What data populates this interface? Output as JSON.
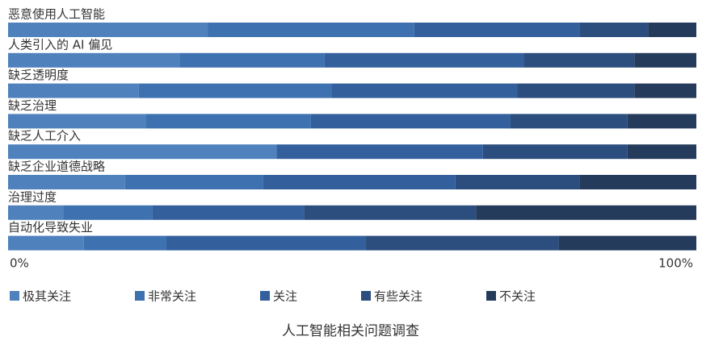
{
  "chart_data": {
    "type": "stacked_bar_horizontal",
    "title": "人工智能相关问题调查",
    "categories": [
      "恶意使用人工智能",
      "人类引入的 AI 偏见",
      "缺乏透明度",
      "缺乏治理",
      "缺乏人工介入",
      "缺乏企业道德战略",
      "治理过度",
      "自动化导致失业"
    ],
    "series": [
      {
        "name": "极其关注",
        "color": "#4f81bd",
        "values": [
          29,
          25,
          19,
          20,
          39,
          17,
          8,
          11
        ]
      },
      {
        "name": "非常关注",
        "color": "#3e71b0",
        "values": [
          30,
          21,
          28,
          24,
          0,
          20,
          13,
          12
        ]
      },
      {
        "name": "关注",
        "color": "#33609c",
        "values": [
          24,
          29,
          27,
          29,
          30,
          28,
          22,
          29
        ]
      },
      {
        "name": "有些关注",
        "color": "#2c4e7e",
        "values": [
          10,
          16,
          17,
          17,
          21,
          18,
          25,
          28
        ]
      },
      {
        "name": "不关注",
        "color": "#253b5c",
        "values": [
          7,
          9,
          9,
          10,
          10,
          17,
          32,
          20
        ]
      }
    ],
    "xlim": [
      0,
      100
    ],
    "xticks": [
      {
        "value": 0,
        "label": "0%"
      },
      {
        "value": 100,
        "label": "100%"
      }
    ],
    "legend": "bottom"
  }
}
